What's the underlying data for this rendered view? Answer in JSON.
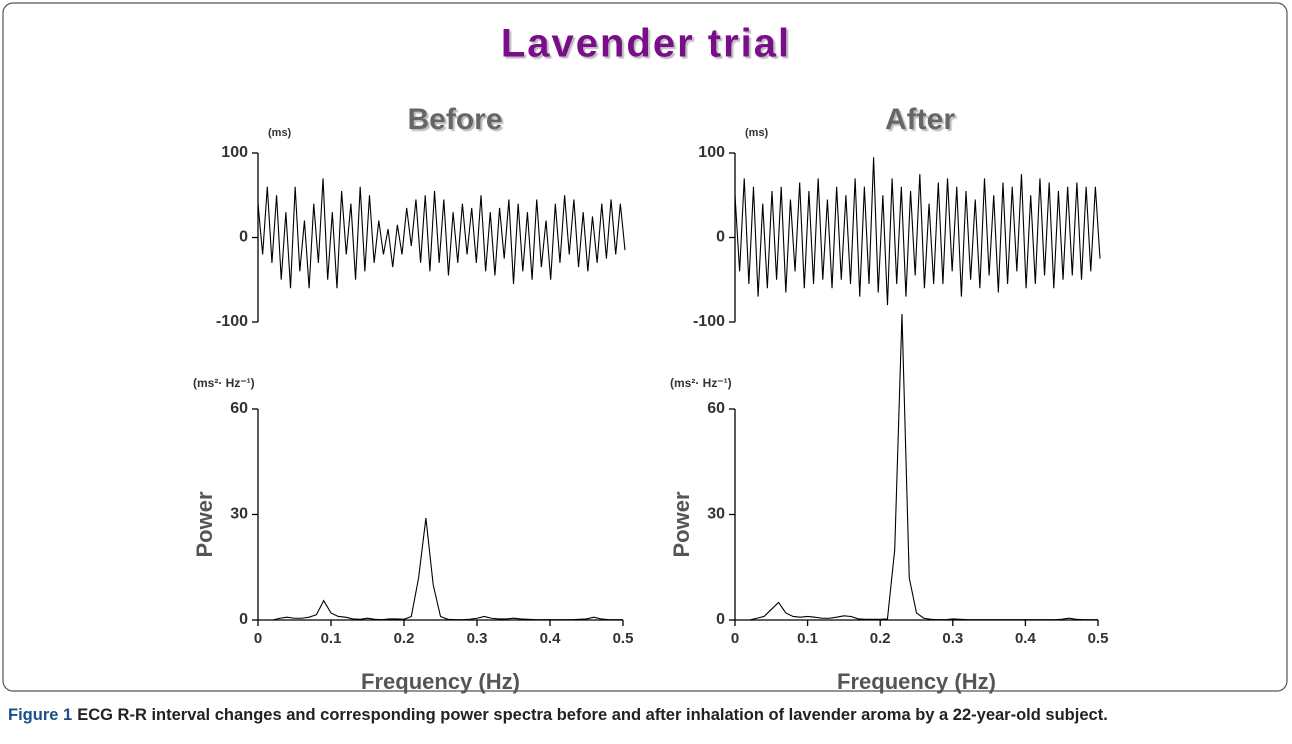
{
  "figure": {
    "title": "Lavender trial",
    "panels": [
      "Before",
      "After"
    ],
    "caption": {
      "label": "Figure 1",
      "text": "ECG R-R interval changes and corresponding power spectra before and after inhalation of lavender aroma by a 22-year-old subject."
    }
  },
  "chart_data": [
    {
      "type": "line",
      "unit_label": "(ms)",
      "color": "#000000",
      "values": [
        40,
        -20,
        60,
        -30,
        50,
        -50,
        30,
        -60,
        60,
        -40,
        20,
        -60,
        40,
        -30,
        70,
        -50,
        30,
        -60,
        55,
        -20,
        40,
        -50,
        60,
        -40,
        50,
        -30,
        20,
        -20,
        10,
        -35,
        15,
        -20,
        35,
        -10,
        45,
        -30,
        50,
        -40,
        55,
        -30,
        45,
        -45,
        30,
        -30,
        40,
        -20,
        35,
        -30,
        50,
        -40,
        30,
        -45,
        35,
        -25,
        45,
        -55,
        40,
        -40,
        30,
        -50,
        45,
        -35,
        20,
        -50,
        40,
        -30,
        50,
        -20,
        45,
        -35,
        30,
        -40,
        25,
        -30,
        40,
        -25,
        45,
        -20,
        40,
        -15
      ],
      "ylim": [
        -100,
        100
      ],
      "yticks": [
        -100,
        0,
        100
      ]
    },
    {
      "type": "line",
      "unit_label": "(ms)",
      "color": "#000000",
      "values": [
        50,
        -40,
        70,
        -55,
        60,
        -70,
        40,
        -60,
        55,
        -50,
        60,
        -65,
        45,
        -40,
        65,
        -60,
        55,
        -55,
        70,
        -50,
        45,
        -60,
        60,
        -50,
        50,
        -55,
        70,
        -70,
        60,
        -55,
        95,
        -65,
        50,
        -80,
        70,
        -55,
        60,
        -70,
        55,
        -45,
        75,
        -60,
        40,
        -55,
        65,
        -55,
        70,
        -40,
        60,
        -70,
        55,
        -50,
        45,
        -60,
        70,
        -45,
        50,
        -65,
        65,
        -55,
        60,
        -40,
        75,
        -60,
        50,
        -55,
        70,
        -45,
        65,
        -60,
        55,
        -50,
        60,
        -45,
        65,
        -50,
        60,
        -40,
        60,
        -25
      ],
      "ylim": [
        -100,
        100
      ],
      "yticks": [
        -100,
        0,
        100
      ]
    },
    {
      "type": "spectrum",
      "unit_label": "(ms²· Hz⁻¹)",
      "ylabel": "Power",
      "xlabel": "Frequency (Hz)",
      "color": "#000000",
      "x": [
        0,
        0.01,
        0.02,
        0.03,
        0.04,
        0.05,
        0.06,
        0.07,
        0.08,
        0.09,
        0.1,
        0.11,
        0.12,
        0.13,
        0.14,
        0.15,
        0.16,
        0.17,
        0.18,
        0.19,
        0.2,
        0.21,
        0.22,
        0.23,
        0.24,
        0.25,
        0.26,
        0.27,
        0.28,
        0.29,
        0.3,
        0.31,
        0.32,
        0.33,
        0.34,
        0.35,
        0.36,
        0.37,
        0.38,
        0.39,
        0.4,
        0.41,
        0.42,
        0.43,
        0.44,
        0.45,
        0.46,
        0.47,
        0.48,
        0.49,
        0.5
      ],
      "values": [
        0,
        0,
        0,
        0.5,
        0.8,
        0.5,
        0.5,
        0.8,
        1.5,
        5.5,
        2,
        1,
        0.8,
        0.3,
        0.2,
        0.5,
        0.2,
        0.1,
        0.3,
        0.3,
        0.2,
        1,
        12,
        29,
        10,
        1,
        0.2,
        0.1,
        0.1,
        0.2,
        0.5,
        1,
        0.5,
        0.3,
        0.3,
        0.5,
        0.3,
        0.2,
        0.1,
        0.1,
        0.1,
        0.1,
        0.1,
        0.1,
        0.2,
        0.3,
        0.8,
        0.3,
        0.1,
        0.1,
        0.1
      ],
      "xlim": [
        0,
        0.5
      ],
      "xticks": [
        0,
        0.1,
        0.2,
        0.3,
        0.4,
        0.5
      ],
      "ylim": [
        0,
        60
      ],
      "yticks": [
        0,
        30,
        60
      ]
    },
    {
      "type": "spectrum",
      "unit_label": "(ms²· Hz⁻¹)",
      "ylabel": "Power",
      "xlabel": "Frequency (Hz)",
      "color": "#000000",
      "x": [
        0,
        0.01,
        0.02,
        0.03,
        0.04,
        0.05,
        0.06,
        0.07,
        0.08,
        0.09,
        0.1,
        0.11,
        0.12,
        0.13,
        0.14,
        0.15,
        0.16,
        0.17,
        0.18,
        0.19,
        0.2,
        0.21,
        0.22,
        0.23,
        0.24,
        0.25,
        0.26,
        0.27,
        0.28,
        0.29,
        0.3,
        0.31,
        0.32,
        0.33,
        0.34,
        0.35,
        0.36,
        0.37,
        0.38,
        0.39,
        0.4,
        0.41,
        0.42,
        0.43,
        0.44,
        0.45,
        0.46,
        0.47,
        0.48,
        0.49,
        0.5
      ],
      "values": [
        0,
        0,
        0,
        0.5,
        1,
        3,
        5,
        2,
        1,
        0.8,
        1,
        0.8,
        0.5,
        0.5,
        0.8,
        1.2,
        1,
        0.3,
        0.2,
        0.2,
        0.2,
        0.3,
        20,
        87,
        12,
        2,
        0.5,
        0.2,
        0.1,
        0.1,
        0.3,
        0.2,
        0.1,
        0.1,
        0.1,
        0.1,
        0.1,
        0.1,
        0.1,
        0.1,
        0.1,
        0.1,
        0.1,
        0.1,
        0.1,
        0.2,
        0.5,
        0.2,
        0.1,
        0.1,
        0.1
      ],
      "xlim": [
        0,
        0.5
      ],
      "xticks": [
        0,
        0.1,
        0.2,
        0.3,
        0.4,
        0.5
      ],
      "ylim": [
        0,
        60
      ],
      "yticks": [
        0,
        30,
        60
      ]
    }
  ]
}
